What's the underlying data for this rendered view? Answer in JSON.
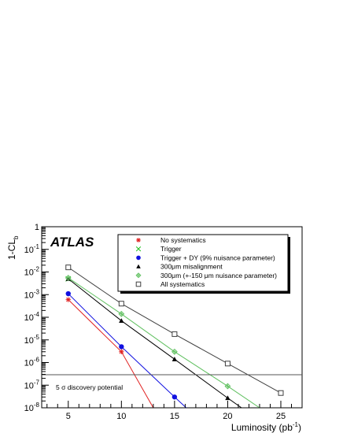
{
  "chart_data": {
    "type": "line",
    "xlabel": "Luminosity (pb",
    "xlabel_sup": "-1",
    "xlabel_tail": ")",
    "ylabel": "1-CL",
    "ylabel_sub": "b",
    "xlim": [
      2.5,
      27
    ],
    "ylim": [
      1e-08,
      1
    ],
    "y_log": true,
    "grid": false,
    "x_ticks": [
      "5",
      "10",
      "15",
      "20",
      "25"
    ],
    "y_ticks": [
      {
        "base": "1",
        "exp": ""
      },
      {
        "base": "10",
        "exp": "-1"
      },
      {
        "base": "10",
        "exp": "-2"
      },
      {
        "base": "10",
        "exp": "-3"
      },
      {
        "base": "10",
        "exp": "-4"
      },
      {
        "base": "10",
        "exp": "-5"
      },
      {
        "base": "10",
        "exp": "-6"
      },
      {
        "base": "10",
        "exp": "-7"
      },
      {
        "base": "10",
        "exp": "-8"
      }
    ],
    "logo": "ATLAS",
    "legend_position": "top-right",
    "series": [
      {
        "name": "No systematics",
        "marker": "star",
        "color": "#e02020",
        "x": [
          5,
          10
        ],
        "y": [
          0.0006,
          3e-06
        ],
        "line_to": [
          13,
          1e-08
        ]
      },
      {
        "name": "Trigger",
        "marker": "x",
        "color": "#20c020",
        "x": [
          5
        ],
        "y": [
          0.005
        ],
        "line_to": null
      },
      {
        "name": "Trigger + DY (9% nuisance parameter)",
        "marker": "circle",
        "color": "#1010e0",
        "x": [
          5,
          10,
          15
        ],
        "y": [
          0.0011,
          5e-06,
          3e-08
        ],
        "line_to": [
          16.1,
          1e-08
        ]
      },
      {
        "name": "300μm misalignment",
        "marker": "triangle",
        "color": "#000000",
        "x": [
          5,
          10,
          15,
          20
        ],
        "y": [
          0.005,
          7e-05,
          1.4e-06,
          2.7e-08
        ],
        "line_to": [
          21.3,
          1e-08
        ]
      },
      {
        "name": "300μm (+-150 μm nuisance parameter)",
        "marker": "diamond",
        "color": "#60c060",
        "x": [
          5,
          10,
          15,
          20
        ],
        "y": [
          0.0055,
          0.00014,
          3e-06,
          9e-08
        ],
        "line_to": [
          23,
          1e-08
        ]
      },
      {
        "name": "All systematics",
        "marker": "square",
        "color": "#404040",
        "x": [
          5,
          10,
          15,
          20,
          25
        ],
        "y": [
          0.016,
          0.0004,
          1.8e-05,
          9e-07,
          4.5e-08
        ],
        "line_to": null
      }
    ],
    "reference_line": {
      "y": 2.9e-07,
      "label": "5 σ discovery potential"
    }
  }
}
